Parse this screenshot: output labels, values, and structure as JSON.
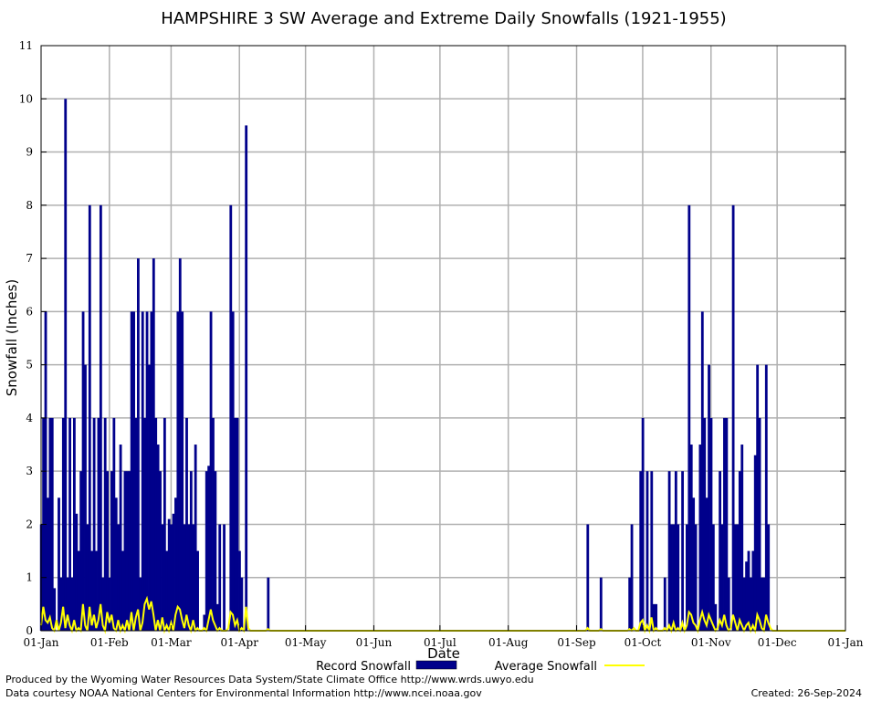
{
  "chart_data": {
    "type": "bar",
    "title": "HAMPSHIRE 3 SW Average and Extreme Daily Snowfalls (1921-1955)",
    "xlabel": "Date",
    "ylabel": "Snowfall (Inches)",
    "ylim": [
      0,
      11
    ],
    "yticks": [
      "0",
      "1",
      "2",
      "3",
      "4",
      "5",
      "6",
      "7",
      "8",
      "9",
      "10",
      "11"
    ],
    "xticks": [
      "01-Jan",
      "01-Feb",
      "01-Mar",
      "01-Apr",
      "01-May",
      "01-Jun",
      "01-Jul",
      "01-Aug",
      "01-Sep",
      "01-Oct",
      "01-Nov",
      "01-Dec",
      "01-Jan"
    ],
    "grid": true,
    "legend_position": "bottom",
    "series": [
      {
        "name": "Record Snowfall",
        "kind": "bar",
        "color": "#00008b",
        "points": [
          {
            "day": 1,
            "value": 2
          },
          {
            "day": 2,
            "value": 4
          },
          {
            "day": 3,
            "value": 6
          },
          {
            "day": 4,
            "value": 2.5
          },
          {
            "day": 5,
            "value": 4
          },
          {
            "day": 6,
            "value": 4
          },
          {
            "day": 7,
            "value": 0.8
          },
          {
            "day": 9,
            "value": 2.5
          },
          {
            "day": 10,
            "value": 1
          },
          {
            "day": 11,
            "value": 4
          },
          {
            "day": 12,
            "value": 10
          },
          {
            "day": 13,
            "value": 1
          },
          {
            "day": 14,
            "value": 4
          },
          {
            "day": 15,
            "value": 1
          },
          {
            "day": 16,
            "value": 4
          },
          {
            "day": 17,
            "value": 2.2
          },
          {
            "day": 18,
            "value": 1.5
          },
          {
            "day": 19,
            "value": 3
          },
          {
            "day": 20,
            "value": 6
          },
          {
            "day": 21,
            "value": 5
          },
          {
            "day": 22,
            "value": 2
          },
          {
            "day": 23,
            "value": 8
          },
          {
            "day": 24,
            "value": 1.5
          },
          {
            "day": 25,
            "value": 4
          },
          {
            "day": 26,
            "value": 1.5
          },
          {
            "day": 27,
            "value": 4
          },
          {
            "day": 28,
            "value": 8
          },
          {
            "day": 29,
            "value": 1
          },
          {
            "day": 30,
            "value": 4
          },
          {
            "day": 31,
            "value": 3
          },
          {
            "day": 32,
            "value": 1
          },
          {
            "day": 33,
            "value": 3
          },
          {
            "day": 34,
            "value": 4
          },
          {
            "day": 35,
            "value": 2.5
          },
          {
            "day": 36,
            "value": 2
          },
          {
            "day": 37,
            "value": 3.5
          },
          {
            "day": 38,
            "value": 1.5
          },
          {
            "day": 39,
            "value": 3
          },
          {
            "day": 40,
            "value": 3
          },
          {
            "day": 41,
            "value": 3
          },
          {
            "day": 42,
            "value": 6
          },
          {
            "day": 43,
            "value": 6
          },
          {
            "day": 44,
            "value": 4
          },
          {
            "day": 45,
            "value": 7
          },
          {
            "day": 46,
            "value": 1
          },
          {
            "day": 47,
            "value": 6
          },
          {
            "day": 48,
            "value": 4
          },
          {
            "day": 49,
            "value": 6
          },
          {
            "day": 50,
            "value": 5
          },
          {
            "day": 51,
            "value": 6
          },
          {
            "day": 52,
            "value": 7
          },
          {
            "day": 53,
            "value": 4
          },
          {
            "day": 54,
            "value": 3.5
          },
          {
            "day": 55,
            "value": 3
          },
          {
            "day": 56,
            "value": 2
          },
          {
            "day": 57,
            "value": 4
          },
          {
            "day": 58,
            "value": 1.5
          },
          {
            "day": 59,
            "value": 2.1
          },
          {
            "day": 60,
            "value": 2
          },
          {
            "day": 61,
            "value": 2.2
          },
          {
            "day": 62,
            "value": 2.5
          },
          {
            "day": 63,
            "value": 6
          },
          {
            "day": 64,
            "value": 7
          },
          {
            "day": 65,
            "value": 6
          },
          {
            "day": 66,
            "value": 2
          },
          {
            "day": 67,
            "value": 4
          },
          {
            "day": 68,
            "value": 2
          },
          {
            "day": 69,
            "value": 3
          },
          {
            "day": 70,
            "value": 2
          },
          {
            "day": 71,
            "value": 3.5
          },
          {
            "day": 72,
            "value": 1.5
          },
          {
            "day": 75,
            "value": 0.3
          },
          {
            "day": 76,
            "value": 3
          },
          {
            "day": 77,
            "value": 3.1
          },
          {
            "day": 78,
            "value": 6
          },
          {
            "day": 79,
            "value": 4
          },
          {
            "day": 80,
            "value": 3
          },
          {
            "day": 81,
            "value": 0.5
          },
          {
            "day": 82,
            "value": 2
          },
          {
            "day": 84,
            "value": 2
          },
          {
            "day": 87,
            "value": 8
          },
          {
            "day": 88,
            "value": 6
          },
          {
            "day": 89,
            "value": 4
          },
          {
            "day": 90,
            "value": 4
          },
          {
            "day": 91,
            "value": 1.5
          },
          {
            "day": 92,
            "value": 1
          },
          {
            "day": 94,
            "value": 9.5
          },
          {
            "day": 104,
            "value": 1
          },
          {
            "day": 249,
            "value": 2
          },
          {
            "day": 255,
            "value": 1
          },
          {
            "day": 268,
            "value": 1
          },
          {
            "day": 269,
            "value": 2
          },
          {
            "day": 273,
            "value": 3
          },
          {
            "day": 274,
            "value": 4
          },
          {
            "day": 276,
            "value": 3
          },
          {
            "day": 278,
            "value": 3
          },
          {
            "day": 279,
            "value": 0.5
          },
          {
            "day": 280,
            "value": 0.5
          },
          {
            "day": 284,
            "value": 1
          },
          {
            "day": 286,
            "value": 3
          },
          {
            "day": 287,
            "value": 2
          },
          {
            "day": 288,
            "value": 2
          },
          {
            "day": 289,
            "value": 3
          },
          {
            "day": 290,
            "value": 2
          },
          {
            "day": 292,
            "value": 3
          },
          {
            "day": 294,
            "value": 2
          },
          {
            "day": 295,
            "value": 8
          },
          {
            "day": 296,
            "value": 3.5
          },
          {
            "day": 297,
            "value": 2.5
          },
          {
            "day": 298,
            "value": 2
          },
          {
            "day": 300,
            "value": 3.5
          },
          {
            "day": 301,
            "value": 6
          },
          {
            "day": 302,
            "value": 4
          },
          {
            "day": 303,
            "value": 2.5
          },
          {
            "day": 304,
            "value": 5
          },
          {
            "day": 305,
            "value": 4
          },
          {
            "day": 306,
            "value": 2
          },
          {
            "day": 307,
            "value": 0.5
          },
          {
            "day": 309,
            "value": 3
          },
          {
            "day": 310,
            "value": 2
          },
          {
            "day": 311,
            "value": 4
          },
          {
            "day": 312,
            "value": 4
          },
          {
            "day": 313,
            "value": 1
          },
          {
            "day": 315,
            "value": 8
          },
          {
            "day": 316,
            "value": 2
          },
          {
            "day": 317,
            "value": 2
          },
          {
            "day": 318,
            "value": 3
          },
          {
            "day": 319,
            "value": 3.5
          },
          {
            "day": 320,
            "value": 1
          },
          {
            "day": 321,
            "value": 1.3
          },
          {
            "day": 322,
            "value": 1.5
          },
          {
            "day": 323,
            "value": 1
          },
          {
            "day": 324,
            "value": 1.5
          },
          {
            "day": 325,
            "value": 3.3
          },
          {
            "day": 326,
            "value": 5
          },
          {
            "day": 327,
            "value": 4
          },
          {
            "day": 328,
            "value": 1
          },
          {
            "day": 329,
            "value": 1
          },
          {
            "day": 330,
            "value": 5
          },
          {
            "day": 331,
            "value": 2
          }
        ]
      },
      {
        "name": "Average Snowfall",
        "kind": "line",
        "color": "#ffff00",
        "points": [
          {
            "day": 1,
            "value": 0.1
          },
          {
            "day": 2,
            "value": 0.45
          },
          {
            "day": 3,
            "value": 0.2
          },
          {
            "day": 4,
            "value": 0.15
          },
          {
            "day": 5,
            "value": 0.25
          },
          {
            "day": 6,
            "value": 0.05
          },
          {
            "day": 8,
            "value": 0.2
          },
          {
            "day": 10,
            "value": 0.15
          },
          {
            "day": 11,
            "value": 0.45
          },
          {
            "day": 12,
            "value": 0.05
          },
          {
            "day": 13,
            "value": 0.3
          },
          {
            "day": 14,
            "value": 0.1
          },
          {
            "day": 16,
            "value": 0.2
          },
          {
            "day": 18,
            "value": 0.05
          },
          {
            "day": 20,
            "value": 0.5
          },
          {
            "day": 21,
            "value": 0.1
          },
          {
            "day": 23,
            "value": 0.45
          },
          {
            "day": 24,
            "value": 0.1
          },
          {
            "day": 25,
            "value": 0.3
          },
          {
            "day": 26,
            "value": 0.05
          },
          {
            "day": 27,
            "value": 0.2
          },
          {
            "day": 28,
            "value": 0.5
          },
          {
            "day": 29,
            "value": 0.1
          },
          {
            "day": 31,
            "value": 0.35
          },
          {
            "day": 32,
            "value": 0.15
          },
          {
            "day": 33,
            "value": 0.3
          },
          {
            "day": 34,
            "value": 0.05
          },
          {
            "day": 36,
            "value": 0.2
          },
          {
            "day": 38,
            "value": 0.1
          },
          {
            "day": 40,
            "value": 0.2
          },
          {
            "day": 42,
            "value": 0.35
          },
          {
            "day": 44,
            "value": 0.25
          },
          {
            "day": 45,
            "value": 0.4
          },
          {
            "day": 47,
            "value": 0.15
          },
          {
            "day": 48,
            "value": 0.5
          },
          {
            "day": 49,
            "value": 0.6
          },
          {
            "day": 50,
            "value": 0.4
          },
          {
            "day": 51,
            "value": 0.55
          },
          {
            "day": 52,
            "value": 0.3
          },
          {
            "day": 54,
            "value": 0.2
          },
          {
            "day": 56,
            "value": 0.25
          },
          {
            "day": 58,
            "value": 0.1
          },
          {
            "day": 60,
            "value": 0.15
          },
          {
            "day": 62,
            "value": 0.3
          },
          {
            "day": 63,
            "value": 0.45
          },
          {
            "day": 64,
            "value": 0.4
          },
          {
            "day": 65,
            "value": 0.2
          },
          {
            "day": 66,
            "value": 0.05
          },
          {
            "day": 67,
            "value": 0.3
          },
          {
            "day": 68,
            "value": 0.1
          },
          {
            "day": 70,
            "value": 0.2
          },
          {
            "day": 72,
            "value": 0.05
          },
          {
            "day": 75,
            "value": 0.05
          },
          {
            "day": 77,
            "value": 0.2
          },
          {
            "day": 78,
            "value": 0.4
          },
          {
            "day": 79,
            "value": 0.2
          },
          {
            "day": 80,
            "value": 0.1
          },
          {
            "day": 82,
            "value": 0.05
          },
          {
            "day": 86,
            "value": 0.05
          },
          {
            "day": 87,
            "value": 0.35
          },
          {
            "day": 88,
            "value": 0.3
          },
          {
            "day": 89,
            "value": 0.1
          },
          {
            "day": 90,
            "value": 0.2
          },
          {
            "day": 92,
            "value": 0.05
          },
          {
            "day": 94,
            "value": 0.45
          },
          {
            "day": 95,
            "value": 0.05
          },
          {
            "day": 104,
            "value": 0.03
          },
          {
            "day": 249,
            "value": 0.05
          },
          {
            "day": 255,
            "value": 0.03
          },
          {
            "day": 268,
            "value": 0.03
          },
          {
            "day": 270,
            "value": 0.05
          },
          {
            "day": 273,
            "value": 0.15
          },
          {
            "day": 274,
            "value": 0.2
          },
          {
            "day": 276,
            "value": 0.1
          },
          {
            "day": 278,
            "value": 0.25
          },
          {
            "day": 280,
            "value": 0.05
          },
          {
            "day": 284,
            "value": 0.05
          },
          {
            "day": 286,
            "value": 0.1
          },
          {
            "day": 288,
            "value": 0.15
          },
          {
            "day": 290,
            "value": 0.05
          },
          {
            "day": 292,
            "value": 0.15
          },
          {
            "day": 294,
            "value": 0.1
          },
          {
            "day": 295,
            "value": 0.35
          },
          {
            "day": 296,
            "value": 0.3
          },
          {
            "day": 297,
            "value": 0.15
          },
          {
            "day": 298,
            "value": 0.1
          },
          {
            "day": 300,
            "value": 0.2
          },
          {
            "day": 301,
            "value": 0.35
          },
          {
            "day": 302,
            "value": 0.2
          },
          {
            "day": 303,
            "value": 0.1
          },
          {
            "day": 304,
            "value": 0.3
          },
          {
            "day": 305,
            "value": 0.2
          },
          {
            "day": 306,
            "value": 0.1
          },
          {
            "day": 308,
            "value": 0.05
          },
          {
            "day": 309,
            "value": 0.2
          },
          {
            "day": 310,
            "value": 0.1
          },
          {
            "day": 311,
            "value": 0.3
          },
          {
            "day": 312,
            "value": 0.1
          },
          {
            "day": 314,
            "value": 0.05
          },
          {
            "day": 315,
            "value": 0.3
          },
          {
            "day": 316,
            "value": 0.15
          },
          {
            "day": 318,
            "value": 0.2
          },
          {
            "day": 319,
            "value": 0.1
          },
          {
            "day": 321,
            "value": 0.1
          },
          {
            "day": 322,
            "value": 0.15
          },
          {
            "day": 324,
            "value": 0.1
          },
          {
            "day": 326,
            "value": 0.3
          },
          {
            "day": 327,
            "value": 0.2
          },
          {
            "day": 328,
            "value": 0.05
          },
          {
            "day": 330,
            "value": 0.3
          },
          {
            "day": 331,
            "value": 0.15
          },
          {
            "day": 332,
            "value": 0.05
          }
        ]
      }
    ]
  },
  "footer": {
    "left_line1": "Produced by the Wyoming Water Resources Data System/State Climate Office http://www.wrds.uwyo.edu",
    "left_line2": "Data courtesy NOAA National Centers for Environmental Information http://www.ncei.noaa.gov",
    "created": "Created:  26-Sep-2024"
  }
}
